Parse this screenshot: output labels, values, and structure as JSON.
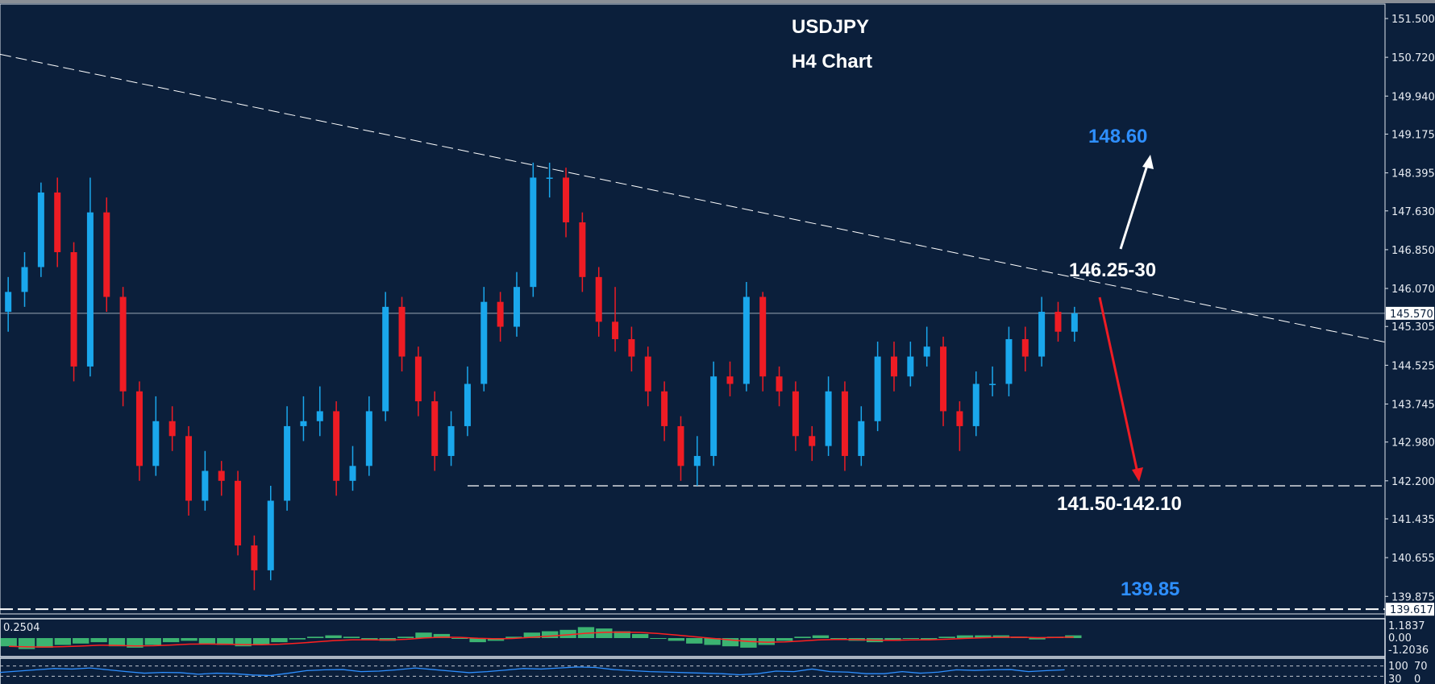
{
  "title": "USDJPY",
  "subtitle": "H4 Chart",
  "annotations": {
    "upside_target": "148.60",
    "resistance": "146.25-30",
    "support": "141.50-142.10",
    "downside_target": "139.85"
  },
  "colors": {
    "background": "#0b1f3b",
    "bull_candle": "#1aa7ec",
    "bear_candle": "#ee1c24",
    "upside_arrow": "#ffffff",
    "downside_arrow": "#ee1c24",
    "histogram": "#3cb371",
    "signal": "#ff2020",
    "oscillator": "#2e8fff"
  },
  "chart_data": [
    {
      "type": "candlestick",
      "symbol": "USDJPY",
      "timeframe": "H4",
      "ylim": [
        139.617,
        151.8
      ],
      "y_ticks": [
        "151.500",
        "150.720",
        "149.940",
        "149.175",
        "148.395",
        "147.630",
        "146.850",
        "146.070",
        "145.305",
        "144.525",
        "143.745",
        "142.980",
        "142.200",
        "141.435",
        "140.655",
        "139.875"
      ],
      "current_price": "145.570",
      "bottom_price": "139.617",
      "ohlc": [
        [
          145.6,
          146.3,
          145.2,
          146.0
        ],
        [
          146.0,
          146.8,
          145.7,
          146.5
        ],
        [
          146.5,
          148.2,
          146.3,
          148.0
        ],
        [
          148.0,
          148.3,
          146.5,
          146.8
        ],
        [
          146.8,
          147.0,
          144.2,
          144.5
        ],
        [
          144.5,
          148.3,
          144.3,
          147.6
        ],
        [
          147.6,
          147.9,
          145.6,
          145.9
        ],
        [
          145.9,
          146.1,
          143.7,
          144.0
        ],
        [
          144.0,
          144.2,
          142.2,
          142.5
        ],
        [
          142.5,
          143.9,
          142.3,
          143.4
        ],
        [
          143.4,
          143.7,
          142.8,
          143.1
        ],
        [
          143.1,
          143.3,
          141.5,
          141.8
        ],
        [
          141.8,
          142.8,
          141.6,
          142.4
        ],
        [
          142.4,
          142.6,
          141.9,
          142.2
        ],
        [
          142.2,
          142.4,
          140.7,
          140.9
        ],
        [
          140.9,
          141.1,
          140.0,
          140.4
        ],
        [
          140.4,
          142.1,
          140.2,
          141.8
        ],
        [
          141.8,
          143.7,
          141.6,
          143.3
        ],
        [
          143.3,
          143.9,
          143.0,
          143.4
        ],
        [
          143.4,
          144.1,
          143.1,
          143.6
        ],
        [
          143.6,
          143.8,
          141.9,
          142.2
        ],
        [
          142.2,
          142.9,
          142.0,
          142.5
        ],
        [
          142.5,
          143.9,
          142.3,
          143.6
        ],
        [
          143.6,
          146.0,
          143.4,
          145.7
        ],
        [
          145.7,
          145.9,
          144.4,
          144.7
        ],
        [
          144.7,
          144.9,
          143.5,
          143.8
        ],
        [
          143.8,
          144.0,
          142.4,
          142.7
        ],
        [
          142.7,
          143.6,
          142.5,
          143.3
        ],
        [
          143.3,
          144.5,
          143.1,
          144.15
        ],
        [
          144.15,
          146.1,
          144.0,
          145.8
        ],
        [
          145.8,
          146.0,
          145.0,
          145.3
        ],
        [
          145.3,
          146.4,
          145.1,
          146.1
        ],
        [
          146.1,
          148.6,
          145.9,
          148.3
        ],
        [
          148.3,
          148.6,
          147.9,
          148.3
        ],
        [
          148.3,
          148.5,
          147.1,
          147.4
        ],
        [
          147.4,
          147.6,
          146.0,
          146.3
        ],
        [
          146.3,
          146.5,
          145.1,
          145.4
        ],
        [
          145.4,
          146.1,
          144.8,
          145.05
        ],
        [
          145.05,
          145.3,
          144.4,
          144.7
        ],
        [
          144.7,
          144.9,
          143.7,
          144.0
        ],
        [
          144.0,
          144.2,
          143.0,
          143.3
        ],
        [
          143.3,
          143.5,
          142.2,
          142.5
        ],
        [
          142.5,
          143.1,
          142.1,
          142.7
        ],
        [
          142.7,
          144.6,
          142.5,
          144.3
        ],
        [
          144.3,
          144.6,
          143.9,
          144.15
        ],
        [
          144.15,
          146.2,
          144.0,
          145.9
        ],
        [
          145.9,
          146.0,
          144.0,
          144.3
        ],
        [
          144.3,
          144.5,
          143.7,
          144.0
        ],
        [
          144.0,
          144.2,
          142.8,
          143.1
        ],
        [
          143.1,
          143.3,
          142.6,
          142.9
        ],
        [
          142.9,
          144.3,
          142.7,
          144.0
        ],
        [
          144.0,
          144.2,
          142.4,
          142.7
        ],
        [
          142.7,
          143.7,
          142.5,
          143.4
        ],
        [
          143.4,
          145.0,
          143.2,
          144.7
        ],
        [
          144.7,
          145.0,
          144.0,
          144.3
        ],
        [
          144.3,
          145.0,
          144.1,
          144.7
        ],
        [
          144.7,
          145.3,
          144.5,
          144.9
        ],
        [
          144.9,
          145.1,
          143.3,
          143.6
        ],
        [
          143.6,
          143.8,
          142.8,
          143.3
        ],
        [
          143.3,
          144.4,
          143.1,
          144.15
        ],
        [
          144.15,
          144.5,
          143.9,
          144.15
        ],
        [
          144.15,
          145.3,
          143.9,
          145.05
        ],
        [
          145.05,
          145.3,
          144.4,
          144.7
        ],
        [
          144.7,
          145.9,
          144.5,
          145.6
        ],
        [
          145.6,
          145.8,
          145.0,
          145.2
        ],
        [
          145.2,
          145.7,
          145.0,
          145.57
        ]
      ],
      "trendline": {
        "price_at_left_edge": 150.78,
        "price_at_right_edge": 144.99,
        "style": "dashed"
      },
      "support_line": {
        "price": 142.1,
        "style": "dashed"
      }
    },
    {
      "type": "histogram",
      "indicator_value": "0.2504",
      "y_ticks": [
        "1.1837",
        "0.00",
        "-1.2036"
      ],
      "ylim": [
        -1.2036,
        1.1837
      ],
      "values": [
        -0.6,
        -0.8,
        -0.7,
        -0.5,
        -0.4,
        -0.3,
        -0.6,
        -0.7,
        -0.5,
        -0.3,
        -0.2,
        -0.4,
        -0.5,
        -0.6,
        -0.5,
        -0.3,
        -0.1,
        0.1,
        0.2,
        0.1,
        -0.1,
        -0.2,
        0.1,
        0.4,
        0.3,
        0.0,
        -0.3,
        -0.2,
        0.1,
        0.4,
        0.5,
        0.6,
        0.8,
        0.7,
        0.5,
        0.3,
        0.0,
        -0.2,
        -0.4,
        -0.5,
        -0.6,
        -0.7,
        -0.5,
        -0.2,
        0.1,
        0.2,
        0.0,
        -0.2,
        -0.3,
        -0.2,
        0.0,
        -0.1,
        0.1,
        0.2,
        0.2,
        0.2,
        0.1,
        -0.1,
        0.1,
        0.2
      ]
    },
    {
      "type": "line",
      "y_ticks": [
        "100",
        "70",
        "30",
        "0"
      ],
      "ylim": [
        0,
        100
      ],
      "levels": [
        70,
        30
      ],
      "values": [
        45,
        50,
        55,
        60,
        58,
        62,
        55,
        48,
        42,
        45,
        44,
        38,
        42,
        40,
        35,
        33,
        42,
        52,
        55,
        56,
        48,
        50,
        55,
        62,
        56,
        50,
        44,
        48,
        54,
        60,
        58,
        62,
        66,
        64,
        56,
        52,
        48,
        46,
        44,
        42,
        40,
        36,
        40,
        50,
        48,
        58,
        48,
        46,
        40,
        40,
        48,
        42,
        46,
        55,
        53,
        55,
        56,
        48,
        52,
        55
      ]
    }
  ]
}
